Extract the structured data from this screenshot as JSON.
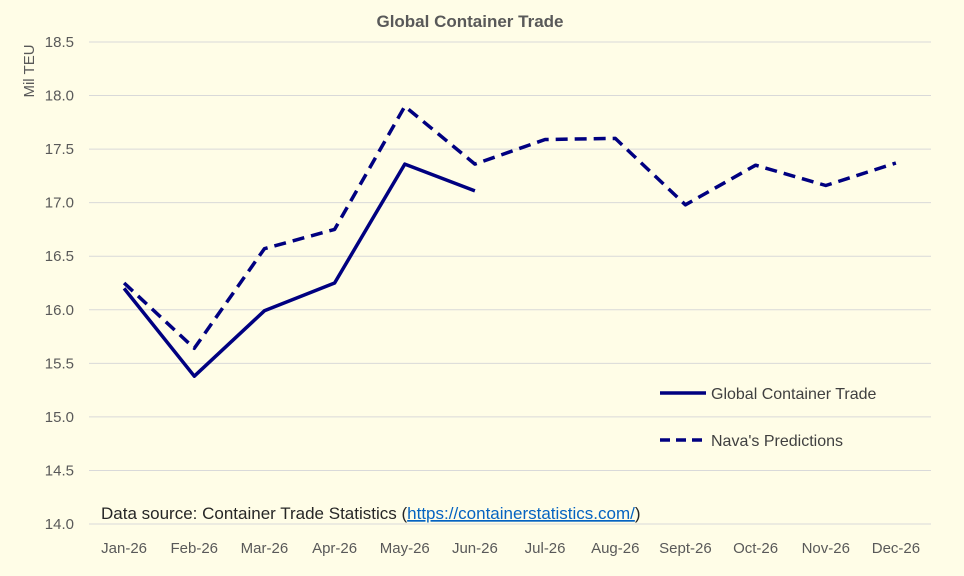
{
  "chart_data": {
    "type": "line",
    "title": "Global Container Trade",
    "ylabel": "Mil TEU",
    "xlabel": "",
    "categories": [
      "Jan-26",
      "Feb-26",
      "Mar-26",
      "Apr-26",
      "May-26",
      "Jun-26",
      "Jul-26",
      "Aug-26",
      "Sept-26",
      "Oct-26",
      "Nov-26",
      "Dec-26"
    ],
    "ylim": [
      14.0,
      18.5
    ],
    "yticks": [
      "14.0",
      "14.5",
      "15.0",
      "15.5",
      "16.0",
      "16.5",
      "17.0",
      "17.5",
      "18.0",
      "18.5"
    ],
    "grid": true,
    "legend_position": "bottom-right",
    "series": [
      {
        "name": "Global Container Trade",
        "style": "solid",
        "color": "#000080",
        "values": [
          16.2,
          15.38,
          15.99,
          16.25,
          17.36,
          17.11,
          null,
          null,
          null,
          null,
          null,
          null
        ]
      },
      {
        "name": "Nava's Predictions",
        "style": "dashed",
        "color": "#000080",
        "values": [
          16.25,
          15.64,
          16.57,
          16.75,
          17.9,
          17.36,
          17.59,
          17.6,
          16.98,
          17.35,
          17.16,
          17.37
        ]
      }
    ],
    "annotation": {
      "prefix": "Data source: Container Trade Statistics (",
      "link": "https://containerstatistics.com/",
      "suffix": ")"
    }
  },
  "colors": {
    "background": "#FFFDE7",
    "grid": "#D9D9D9",
    "series": "#000080"
  }
}
